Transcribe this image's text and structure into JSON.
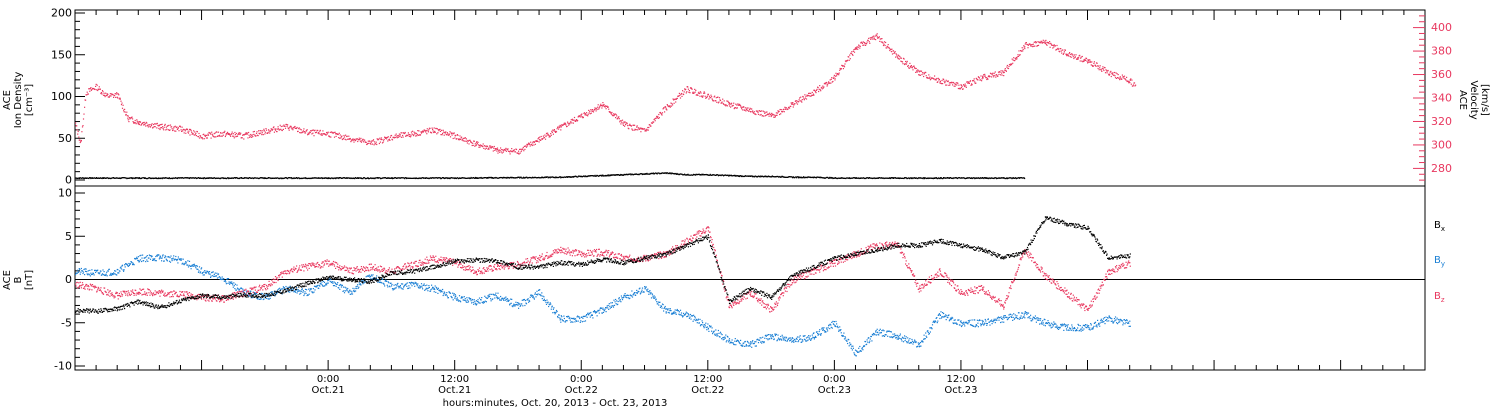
{
  "chart_data": [
    {
      "type": "scatter",
      "panel": "top",
      "ylabel_left": [
        "ACE",
        "Ion Density",
        "[cm⁻³]"
      ],
      "ylabel_right": [
        "ACE",
        "Velocity",
        "[km/s]"
      ],
      "left_ylim": [
        0,
        200
      ],
      "left_ticks": [
        "0",
        "50",
        "100",
        "150",
        "200"
      ],
      "right_ylim": [
        265,
        415
      ],
      "right_ticks": [
        "280",
        "300",
        "320",
        "340",
        "360",
        "380",
        "400"
      ],
      "series": [
        {
          "name": "Ion Density",
          "axis": "left",
          "color": "#000000",
          "points": [
            [
              0,
              3
            ],
            [
              6,
              3
            ],
            [
              12,
              3
            ],
            [
              18,
              3
            ],
            [
              24,
              3
            ],
            [
              30,
              3
            ],
            [
              36,
              3
            ],
            [
              42,
              3.5
            ],
            [
              46,
              4
            ],
            [
              48,
              5
            ],
            [
              50,
              6
            ],
            [
              52,
              7
            ],
            [
              54,
              8
            ],
            [
              56,
              9
            ],
            [
              58,
              7
            ],
            [
              60,
              7
            ],
            [
              62,
              6
            ],
            [
              64,
              5
            ],
            [
              66,
              5
            ],
            [
              68,
              4
            ],
            [
              70,
              4
            ],
            [
              72,
              3
            ],
            [
              74,
              3
            ],
            [
              76,
              3
            ],
            [
              78,
              3
            ],
            [
              80,
              3
            ],
            [
              82,
              3
            ],
            [
              84,
              3
            ],
            [
              86,
              3
            ],
            [
              88,
              3
            ],
            [
              90,
              3
            ]
          ]
        },
        {
          "name": "Velocity",
          "axis": "right",
          "color": "#e8385f",
          "points": [
            [
              0,
              318
            ],
            [
              0.5,
              302
            ],
            [
              1,
              345
            ],
            [
              2,
              350
            ],
            [
              3,
              342
            ],
            [
              4,
              343
            ],
            [
              5,
              323
            ],
            [
              6,
              320
            ],
            [
              8,
              316
            ],
            [
              10,
              314
            ],
            [
              12,
              308
            ],
            [
              14,
              310
            ],
            [
              16,
              308
            ],
            [
              18,
              312
            ],
            [
              20,
              316
            ],
            [
              22,
              311
            ],
            [
              24,
              310
            ],
            [
              26,
              306
            ],
            [
              28,
              302
            ],
            [
              30,
              307
            ],
            [
              32,
              310
            ],
            [
              34,
              313
            ],
            [
              36,
              308
            ],
            [
              38,
              301
            ],
            [
              40,
              296
            ],
            [
              42,
              295
            ],
            [
              44,
              305
            ],
            [
              46,
              315
            ],
            [
              48,
              325
            ],
            [
              50,
              335
            ],
            [
              52,
              318
            ],
            [
              54,
              312
            ],
            [
              56,
              332
            ],
            [
              58,
              348
            ],
            [
              60,
              342
            ],
            [
              62,
              335
            ],
            [
              64,
              330
            ],
            [
              66,
              325
            ],
            [
              68,
              335
            ],
            [
              70,
              345
            ],
            [
              72,
              358
            ],
            [
              74,
              383
            ],
            [
              76,
              393
            ],
            [
              78,
              375
            ],
            [
              80,
              362
            ],
            [
              82,
              355
            ],
            [
              84,
              350
            ],
            [
              86,
              358
            ],
            [
              88,
              362
            ],
            [
              90,
              385
            ],
            [
              92,
              388
            ],
            [
              94,
              378
            ],
            [
              96,
              372
            ],
            [
              98,
              362
            ],
            [
              100,
              355
            ],
            [
              100.5,
              350
            ]
          ]
        }
      ]
    },
    {
      "type": "scatter",
      "panel": "bottom",
      "ylabel_left": [
        "ACE",
        "B",
        "[nT]"
      ],
      "ylim": [
        -10,
        10
      ],
      "ticks": [
        "-10",
        "-5",
        "0",
        "5",
        "10"
      ],
      "x_ticks": [
        {
          "time": "0:00",
          "date": "Oct.21",
          "hours": 24
        },
        {
          "time": "12:00",
          "date": "Oct.21",
          "hours": 36
        },
        {
          "time": "0:00",
          "date": "Oct.22",
          "hours": 48
        },
        {
          "time": "12:00",
          "date": "Oct.22",
          "hours": 60
        },
        {
          "time": "0:00",
          "date": "Oct.23",
          "hours": 72
        },
        {
          "time": "12:00",
          "date": "Oct.23",
          "hours": 84
        }
      ],
      "xlabel": "hours:minutes, Oct. 20, 2013 - Oct. 23, 2013",
      "series": [
        {
          "name": "Bx",
          "color": "#000000",
          "points": [
            [
              0,
              -3.5
            ],
            [
              2,
              -3.6
            ],
            [
              4,
              -3.3
            ],
            [
              6,
              -2.5
            ],
            [
              8,
              -3.2
            ],
            [
              10,
              -2.4
            ],
            [
              12,
              -1.8
            ],
            [
              14,
              -2.0
            ],
            [
              16,
              -1.7
            ],
            [
              18,
              -1.8
            ],
            [
              20,
              -1.2
            ],
            [
              22,
              -0.4
            ],
            [
              24,
              0.3
            ],
            [
              26,
              0.1
            ],
            [
              28,
              -0.2
            ],
            [
              30,
              0.8
            ],
            [
              32,
              1.0
            ],
            [
              34,
              1.5
            ],
            [
              36,
              2.2
            ],
            [
              38,
              2.3
            ],
            [
              40,
              2.2
            ],
            [
              42,
              1.5
            ],
            [
              44,
              1.5
            ],
            [
              46,
              2.0
            ],
            [
              48,
              1.8
            ],
            [
              50,
              2.4
            ],
            [
              52,
              2.0
            ],
            [
              54,
              2.5
            ],
            [
              56,
              3.0
            ],
            [
              58,
              4.0
            ],
            [
              60,
              5.0
            ],
            [
              62,
              -2.5
            ],
            [
              64,
              -1.0
            ],
            [
              66,
              -2.0
            ],
            [
              68,
              0.5
            ],
            [
              70,
              1.5
            ],
            [
              72,
              2.5
            ],
            [
              74,
              3.0
            ],
            [
              76,
              3.5
            ],
            [
              78,
              4.0
            ],
            [
              80,
              4.0
            ],
            [
              82,
              4.5
            ],
            [
              84,
              4.0
            ],
            [
              86,
              3.5
            ],
            [
              88,
              2.6
            ],
            [
              90,
              3.2
            ],
            [
              92,
              7.2
            ],
            [
              94,
              6.5
            ],
            [
              96,
              6.0
            ],
            [
              98,
              2.5
            ],
            [
              100,
              2.8
            ]
          ]
        },
        {
          "name": "By",
          "color": "#1a7fd4",
          "points": [
            [
              0,
              1.0
            ],
            [
              2,
              0.8
            ],
            [
              4,
              1.0
            ],
            [
              6,
              2.5
            ],
            [
              8,
              2.6
            ],
            [
              10,
              2.3
            ],
            [
              12,
              1.0
            ],
            [
              14,
              0.2
            ],
            [
              16,
              -1.5
            ],
            [
              18,
              -2.0
            ],
            [
              20,
              -1.0
            ],
            [
              22,
              -1.5
            ],
            [
              24,
              0.0
            ],
            [
              26,
              -1.5
            ],
            [
              28,
              0.5
            ],
            [
              30,
              -0.8
            ],
            [
              32,
              -0.5
            ],
            [
              34,
              -1.0
            ],
            [
              36,
              -2.0
            ],
            [
              38,
              -2.5
            ],
            [
              40,
              -1.8
            ],
            [
              42,
              -3.0
            ],
            [
              44,
              -1.5
            ],
            [
              46,
              -4.5
            ],
            [
              48,
              -4.5
            ],
            [
              50,
              -3.5
            ],
            [
              52,
              -2.0
            ],
            [
              54,
              -1.0
            ],
            [
              56,
              -3.5
            ],
            [
              58,
              -4.0
            ],
            [
              60,
              -5.5
            ],
            [
              62,
              -7.0
            ],
            [
              64,
              -7.5
            ],
            [
              66,
              -6.5
            ],
            [
              68,
              -7.0
            ],
            [
              70,
              -6.5
            ],
            [
              72,
              -5.0
            ],
            [
              74,
              -8.5
            ],
            [
              76,
              -6.0
            ],
            [
              78,
              -6.5
            ],
            [
              80,
              -7.5
            ],
            [
              82,
              -4.0
            ],
            [
              84,
              -5.0
            ],
            [
              86,
              -5.0
            ],
            [
              88,
              -4.5
            ],
            [
              90,
              -4.0
            ],
            [
              92,
              -5.0
            ],
            [
              94,
              -5.5
            ],
            [
              96,
              -5.5
            ],
            [
              98,
              -4.5
            ],
            [
              100,
              -5.0
            ]
          ]
        },
        {
          "name": "Bz",
          "color": "#e8385f",
          "points": [
            [
              0,
              -0.5
            ],
            [
              2,
              -1.0
            ],
            [
              4,
              -1.8
            ],
            [
              6,
              -1.3
            ],
            [
              8,
              -1.5
            ],
            [
              10,
              -1.6
            ],
            [
              12,
              -2.0
            ],
            [
              14,
              -2.2
            ],
            [
              16,
              -1.5
            ],
            [
              18,
              -0.8
            ],
            [
              20,
              1.0
            ],
            [
              22,
              1.5
            ],
            [
              24,
              2.0
            ],
            [
              26,
              1.0
            ],
            [
              28,
              1.5
            ],
            [
              30,
              1.0
            ],
            [
              32,
              1.8
            ],
            [
              34,
              2.5
            ],
            [
              36,
              2.0
            ],
            [
              38,
              1.0
            ],
            [
              40,
              1.5
            ],
            [
              42,
              1.8
            ],
            [
              44,
              2.5
            ],
            [
              46,
              3.5
            ],
            [
              48,
              3.0
            ],
            [
              50,
              3.2
            ],
            [
              52,
              2.5
            ],
            [
              54,
              2.5
            ],
            [
              56,
              3.0
            ],
            [
              58,
              4.5
            ],
            [
              60,
              6.0
            ],
            [
              62,
              -3.0
            ],
            [
              64,
              -1.5
            ],
            [
              66,
              -3.5
            ],
            [
              68,
              0.0
            ],
            [
              70,
              1.0
            ],
            [
              72,
              2.0
            ],
            [
              74,
              3.0
            ],
            [
              76,
              4.0
            ],
            [
              78,
              4.0
            ],
            [
              80,
              -1.0
            ],
            [
              82,
              1.0
            ],
            [
              84,
              -1.5
            ],
            [
              86,
              -1.0
            ],
            [
              88,
              -3.0
            ],
            [
              90,
              3.5
            ],
            [
              92,
              0.5
            ],
            [
              94,
              -1.5
            ],
            [
              96,
              -3.5
            ],
            [
              98,
              1.0
            ],
            [
              100,
              2.0
            ]
          ]
        }
      ]
    }
  ],
  "legend": {
    "bx": {
      "base": "B",
      "sub": "x",
      "color": "#000000"
    },
    "by": {
      "base": "B",
      "sub": "y",
      "color": "#1a7fd4"
    },
    "bz": {
      "base": "B",
      "sub": "z",
      "color": "#e8385f"
    }
  }
}
